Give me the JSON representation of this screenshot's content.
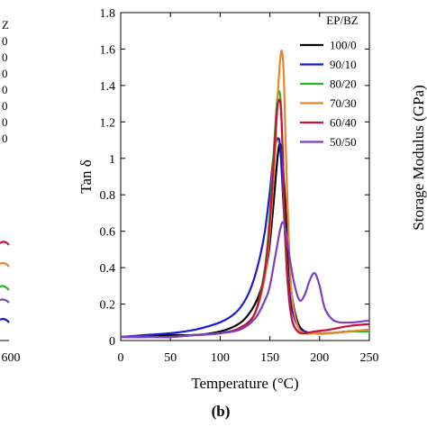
{
  "chart_data": [
    {
      "panel": "a",
      "type": "line",
      "clipped": true,
      "visible_tick_labels": {
        "x": [
          "600"
        ],
        "legend_fragments": [
          "Z",
          "0",
          "0",
          "0",
          "0",
          "0",
          "0",
          "0"
        ]
      }
    },
    {
      "panel": "b",
      "type": "line",
      "title": "",
      "xlabel": "Temperature (°C)",
      "ylabel": "Tan δ",
      "xlim": [
        0,
        250
      ],
      "ylim": [
        0,
        1.8
      ],
      "x_ticks": [
        0,
        50,
        100,
        150,
        200,
        250
      ],
      "y_ticks": [
        0,
        0.2,
        0.4,
        0.6,
        0.8,
        1,
        1.2,
        1.4,
        1.6,
        1.8
      ],
      "y_tick_labels": [
        "0",
        "0.2",
        "0.4",
        "0.6",
        "0.8",
        "1",
        "1.2",
        "1.4",
        "1.6",
        "1.8"
      ],
      "grid": false,
      "legend": {
        "title": "EP/BZ",
        "placement": "top-right"
      },
      "series": [
        {
          "name": "100/0",
          "color": "#000000",
          "x": [
            0,
            25,
            50,
            75,
            100,
            115,
            125,
            135,
            142,
            148,
            152,
            156,
            158,
            160,
            162,
            165,
            168,
            172,
            178,
            185,
            195,
            210,
            230,
            250
          ],
          "y": [
            0.02,
            0.02,
            0.03,
            0.03,
            0.05,
            0.08,
            0.12,
            0.2,
            0.3,
            0.45,
            0.65,
            0.9,
            1.02,
            1.08,
            1.02,
            0.8,
            0.5,
            0.25,
            0.1,
            0.05,
            0.04,
            0.04,
            0.05,
            0.05
          ]
        },
        {
          "name": "90/10",
          "color": "#1a1ad4",
          "x": [
            0,
            25,
            50,
            75,
            100,
            115,
            125,
            133,
            140,
            145,
            150,
            153,
            156,
            158,
            160,
            162,
            165,
            168,
            172,
            178,
            185,
            195,
            210,
            230,
            250
          ],
          "y": [
            0.02,
            0.03,
            0.04,
            0.06,
            0.1,
            0.15,
            0.22,
            0.32,
            0.46,
            0.6,
            0.82,
            0.98,
            1.08,
            1.11,
            1.08,
            0.92,
            0.6,
            0.35,
            0.18,
            0.08,
            0.05,
            0.04,
            0.04,
            0.05,
            0.05
          ]
        },
        {
          "name": "80/20",
          "color": "#22bb22",
          "x": [
            0,
            25,
            50,
            75,
            100,
            120,
            135,
            145,
            150,
            154,
            157,
            159,
            161,
            163,
            165,
            168,
            172,
            178,
            185,
            195,
            210,
            230,
            250
          ],
          "y": [
            0.02,
            0.02,
            0.02,
            0.03,
            0.04,
            0.07,
            0.15,
            0.4,
            0.7,
            1.05,
            1.3,
            1.37,
            1.3,
            1.0,
            0.6,
            0.3,
            0.12,
            0.05,
            0.04,
            0.04,
            0.04,
            0.05,
            0.05
          ]
        },
        {
          "name": "70/30",
          "color": "#e8862a",
          "x": [
            0,
            25,
            50,
            75,
            100,
            120,
            135,
            145,
            150,
            155,
            158,
            160,
            162,
            164,
            166,
            169,
            172,
            178,
            185,
            195,
            210,
            230,
            250
          ],
          "y": [
            0.02,
            0.02,
            0.02,
            0.03,
            0.04,
            0.07,
            0.15,
            0.35,
            0.6,
            1.0,
            1.35,
            1.52,
            1.59,
            1.45,
            1.05,
            0.55,
            0.25,
            0.08,
            0.04,
            0.04,
            0.04,
            0.05,
            0.06
          ]
        },
        {
          "name": "60/40",
          "color": "#c8103c",
          "x": [
            0,
            25,
            50,
            75,
            100,
            120,
            135,
            145,
            150,
            154,
            157,
            159,
            161,
            163,
            165,
            168,
            172,
            178,
            185,
            195,
            210,
            230,
            250
          ],
          "y": [
            0.02,
            0.02,
            0.02,
            0.03,
            0.04,
            0.07,
            0.15,
            0.38,
            0.65,
            1.0,
            1.25,
            1.32,
            1.28,
            1.02,
            0.65,
            0.32,
            0.12,
            0.05,
            0.04,
            0.05,
            0.06,
            0.08,
            0.09
          ]
        },
        {
          "name": "50/50",
          "color": "#7b3fc4",
          "x": [
            0,
            25,
            50,
            75,
            100,
            120,
            135,
            145,
            150,
            155,
            160,
            163,
            166,
            170,
            175,
            180,
            185,
            190,
            195,
            200,
            205,
            212,
            220,
            235,
            250
          ],
          "y": [
            0.02,
            0.02,
            0.02,
            0.03,
            0.04,
            0.06,
            0.12,
            0.22,
            0.3,
            0.45,
            0.6,
            0.65,
            0.6,
            0.45,
            0.3,
            0.22,
            0.25,
            0.33,
            0.37,
            0.3,
            0.18,
            0.12,
            0.1,
            0.1,
            0.11
          ]
        }
      ]
    },
    {
      "panel": "c",
      "type": "line",
      "clipped": true,
      "ylabel": "Storage Modulus (GPa)"
    }
  ],
  "panel_labels": {
    "b": "(b)"
  }
}
